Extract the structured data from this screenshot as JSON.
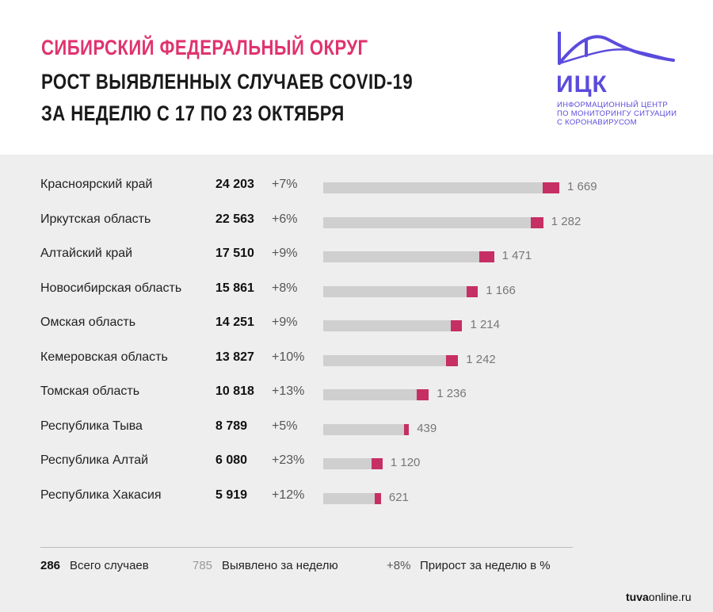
{
  "header": {
    "title_line1": "СИБИРСКИЙ ФЕДЕРАЛЬНЫЙ ОКРУГ",
    "title_line2": "РОСТ ВЫЯВЛЕННЫХ СЛУЧАЕВ COVID-19",
    "title_line3": "ЗА НЕДЕЛЮ С 17 ПО 23 ОКТЯБРЯ"
  },
  "logo": {
    "name": "ИЦК",
    "sub1": "ИНФОРМАЦИОННЫЙ ЦЕНТР",
    "sub2": "ПО МОНИТОРИНГУ СИТУАЦИИ",
    "sub3": "С КОРОНАВИРУСОМ",
    "color": "#5b4bdc"
  },
  "colors": {
    "title_accent": "#e0336f",
    "bar_total": "#cfcfcf",
    "bar_weekly": "#c62f63",
    "panel_bg": "#eeeeee"
  },
  "chart_data": {
    "type": "bar",
    "orientation": "horizontal",
    "stacked": true,
    "categories": [
      "Красноярский край",
      "Иркутская область",
      "Алтайский край",
      "Новосибирская область",
      "Омская область",
      "Кемеровская область",
      "Томская область",
      "Республика Тыва",
      "Республика Алтай",
      "Республика Хакасия"
    ],
    "total_labels": [
      "24 203",
      "22 563",
      "17 510",
      "15 861",
      "14 251",
      "13 827",
      "10 818",
      "8 789",
      "6 080",
      "5 919"
    ],
    "totals": [
      24203,
      22563,
      17510,
      15861,
      14251,
      13827,
      10818,
      8789,
      6080,
      5919
    ],
    "growth_labels": [
      "+7%",
      "+6%",
      "+9%",
      "+8%",
      "+9%",
      "+10%",
      "+13%",
      "+5%",
      "+23%",
      "+12%"
    ],
    "weekly_labels": [
      "1 669",
      "1 282",
      "1 471",
      "1 166",
      "1 214",
      "1 242",
      "1 236",
      "439",
      "1 120",
      "621"
    ],
    "weekly": [
      1669,
      1282,
      1471,
      1166,
      1214,
      1242,
      1236,
      439,
      1120,
      621
    ],
    "xlim": [
      0,
      24203
    ]
  },
  "legend": {
    "total_num": "286",
    "total_text": "Всего случаев",
    "weekly_num": "785",
    "weekly_text": "Выявлено за неделю",
    "growth_num": "+8%",
    "growth_text": "Прирост за неделю в %"
  },
  "footer": {
    "site_bold": "tuva",
    "site_rest": "online.ru"
  }
}
